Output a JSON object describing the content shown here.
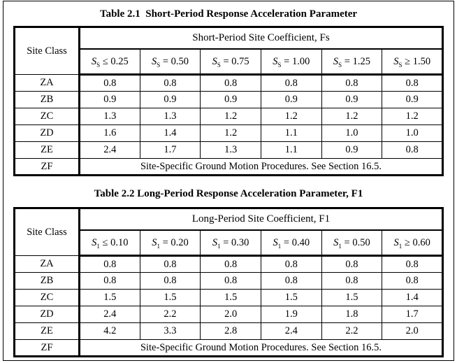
{
  "page": {
    "background": "#ffffff",
    "border_color": "#000000",
    "text_color": "#000000"
  },
  "tables": [
    {
      "title": "Table 2.1  Short-Period Response Acceleration Parameter",
      "corner_label": "Site Class",
      "span_header": "Short-Period Site Coefficient, Fs",
      "col_headers": [
        {
          "sym": "S",
          "sub": "S",
          "op": "≤",
          "val": "0.25"
        },
        {
          "sym": "S",
          "sub": "S",
          "op": "=",
          "val": "0.50"
        },
        {
          "sym": "S",
          "sub": "S",
          "op": "=",
          "val": "0.75"
        },
        {
          "sym": "S",
          "sub": "S",
          "op": "=",
          "val": "1.00"
        },
        {
          "sym": "S",
          "sub": "S",
          "op": "=",
          "val": "1.25"
        },
        {
          "sym": "S",
          "sub": "S",
          "op": "≥",
          "val": "1.50"
        }
      ],
      "rows": [
        {
          "site_class": "ZA",
          "values": [
            "0.8",
            "0.8",
            "0.8",
            "0.8",
            "0.8",
            "0.8"
          ]
        },
        {
          "site_class": "ZB",
          "values": [
            "0.9",
            "0.9",
            "0.9",
            "0.9",
            "0.9",
            "0.9"
          ]
        },
        {
          "site_class": "ZC",
          "values": [
            "1.3",
            "1.3",
            "1.2",
            "1.2",
            "1.2",
            "1.2"
          ]
        },
        {
          "site_class": "ZD",
          "values": [
            "1.6",
            "1.4",
            "1.2",
            "1.1",
            "1.0",
            "1.0"
          ]
        },
        {
          "site_class": "ZE",
          "values": [
            "2.4",
            "1.7",
            "1.3",
            "1.1",
            "0.9",
            "0.8"
          ]
        }
      ],
      "zf_row": {
        "site_class": "ZF",
        "note": "Site-Specific Ground Motion Procedures. See Section 16.5."
      }
    },
    {
      "title": "Table 2.2 Long-Period Response Acceleration Parameter, F1",
      "corner_label": "Site Class",
      "span_header": "Long-Period Site Coefficient, F1",
      "col_headers": [
        {
          "sym": "S",
          "sub": "1",
          "op": "≤",
          "val": "0.10"
        },
        {
          "sym": "S",
          "sub": "1",
          "op": "=",
          "val": "0.20"
        },
        {
          "sym": "S",
          "sub": "1",
          "op": "=",
          "val": "0.30"
        },
        {
          "sym": "S",
          "sub": "1",
          "op": "=",
          "val": "0.40"
        },
        {
          "sym": "S",
          "sub": "1",
          "op": "=",
          "val": "0.50"
        },
        {
          "sym": "S",
          "sub": "1",
          "op": "≥",
          "val": "0.60"
        }
      ],
      "rows": [
        {
          "site_class": "ZA",
          "values": [
            "0.8",
            "0.8",
            "0.8",
            "0.8",
            "0.8",
            "0.8"
          ]
        },
        {
          "site_class": "ZB",
          "values": [
            "0.8",
            "0.8",
            "0.8",
            "0.8",
            "0.8",
            "0.8"
          ]
        },
        {
          "site_class": "ZC",
          "values": [
            "1.5",
            "1.5",
            "1.5",
            "1.5",
            "1.5",
            "1.4"
          ]
        },
        {
          "site_class": "ZD",
          "values": [
            "2.4",
            "2.2",
            "2.0",
            "1.9",
            "1.8",
            "1.7"
          ]
        },
        {
          "site_class": "ZE",
          "values": [
            "4.2",
            "3.3",
            "2.8",
            "2.4",
            "2.2",
            "2.0"
          ]
        }
      ],
      "zf_row": {
        "site_class": "ZF",
        "note": "Site-Specific Ground Motion Procedures. See Section 16.5."
      }
    }
  ]
}
